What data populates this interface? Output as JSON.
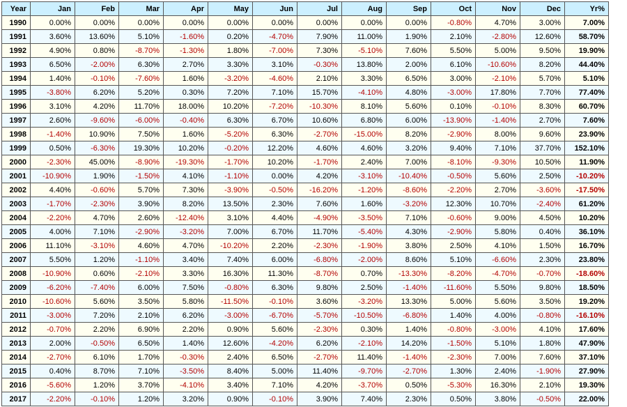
{
  "header": [
    "Year",
    "Jan",
    "Feb",
    "Mar",
    "Apr",
    "May",
    "Jun",
    "Jul",
    "Aug",
    "Sep",
    "Oct",
    "Nov",
    "Dec",
    "Yr%"
  ],
  "rows": [
    [
      "1990",
      "0.00%",
      "0.00%",
      "0.00%",
      "0.00%",
      "0.00%",
      "0.00%",
      "0.00%",
      "0.00%",
      "0.00%",
      "-0.80%",
      "4.70%",
      "3.00%",
      "7.00%"
    ],
    [
      "1991",
      "3.60%",
      "13.60%",
      "5.10%",
      "-1.60%",
      "0.20%",
      "-4.70%",
      "7.90%",
      "11.00%",
      "1.90%",
      "2.10%",
      "-2.80%",
      "12.60%",
      "58.70%"
    ],
    [
      "1992",
      "4.90%",
      "0.80%",
      "-8.70%",
      "-1.30%",
      "1.80%",
      "-7.00%",
      "7.30%",
      "-5.10%",
      "7.60%",
      "5.50%",
      "5.00%",
      "9.50%",
      "19.90%"
    ],
    [
      "1993",
      "6.50%",
      "-2.00%",
      "6.30%",
      "2.70%",
      "3.30%",
      "3.10%",
      "-0.30%",
      "13.80%",
      "2.00%",
      "6.10%",
      "-10.60%",
      "8.20%",
      "44.40%"
    ],
    [
      "1994",
      "1.40%",
      "-0.10%",
      "-7.60%",
      "1.60%",
      "-3.20%",
      "-4.60%",
      "2.10%",
      "3.30%",
      "6.50%",
      "3.00%",
      "-2.10%",
      "5.70%",
      "5.10%"
    ],
    [
      "1995",
      "-3.80%",
      "6.20%",
      "5.20%",
      "0.30%",
      "7.20%",
      "7.10%",
      "15.70%",
      "-4.10%",
      "4.80%",
      "-3.00%",
      "17.80%",
      "7.70%",
      "77.40%"
    ],
    [
      "1996",
      "3.10%",
      "4.20%",
      "11.70%",
      "18.00%",
      "10.20%",
      "-7.20%",
      "-10.30%",
      "8.10%",
      "5.60%",
      "0.10%",
      "-0.10%",
      "8.30%",
      "60.70%"
    ],
    [
      "1997",
      "2.60%",
      "-9.60%",
      "-6.00%",
      "-0.40%",
      "6.30%",
      "6.70%",
      "10.60%",
      "6.80%",
      "6.00%",
      "-13.90%",
      "-1.40%",
      "2.70%",
      "7.60%"
    ],
    [
      "1998",
      "-1.40%",
      "10.90%",
      "7.50%",
      "1.60%",
      "-5.20%",
      "6.30%",
      "-2.70%",
      "-15.00%",
      "8.20%",
      "-2.90%",
      "8.00%",
      "9.60%",
      "23.90%"
    ],
    [
      "1999",
      "0.50%",
      "-6.30%",
      "19.30%",
      "10.20%",
      "-0.20%",
      "12.20%",
      "4.60%",
      "4.60%",
      "3.20%",
      "9.40%",
      "7.10%",
      "37.70%",
      "152.10%"
    ],
    [
      "2000",
      "-2.30%",
      "45.00%",
      "-8.90%",
      "-19.30%",
      "-1.70%",
      "10.20%",
      "-1.70%",
      "2.40%",
      "7.00%",
      "-8.10%",
      "-9.30%",
      "10.50%",
      "11.90%"
    ],
    [
      "2001",
      "-10.90%",
      "1.90%",
      "-1.50%",
      "4.10%",
      "-1.10%",
      "0.00%",
      "4.20%",
      "-3.10%",
      "-10.40%",
      "-0.50%",
      "5.60%",
      "2.50%",
      "-10.20%"
    ],
    [
      "2002",
      "4.40%",
      "-0.60%",
      "5.70%",
      "7.30%",
      "-3.90%",
      "-0.50%",
      "-16.20%",
      "-1.20%",
      "-8.60%",
      "-2.20%",
      "2.70%",
      "-3.60%",
      "-17.50%"
    ],
    [
      "2003",
      "-1.70%",
      "-2.30%",
      "3.90%",
      "8.20%",
      "13.50%",
      "2.30%",
      "7.60%",
      "1.60%",
      "-3.20%",
      "12.30%",
      "10.70%",
      "-2.40%",
      "61.20%"
    ],
    [
      "2004",
      "-2.20%",
      "4.70%",
      "2.60%",
      "-12.40%",
      "3.10%",
      "4.40%",
      "-4.90%",
      "-3.50%",
      "7.10%",
      "-0.60%",
      "9.00%",
      "4.50%",
      "10.20%"
    ],
    [
      "2005",
      "4.00%",
      "7.10%",
      "-2.90%",
      "-3.20%",
      "7.00%",
      "6.70%",
      "11.70%",
      "-5.40%",
      "4.30%",
      "-2.90%",
      "5.80%",
      "0.40%",
      "36.10%"
    ],
    [
      "2006",
      "11.10%",
      "-3.10%",
      "4.60%",
      "4.70%",
      "-10.20%",
      "2.20%",
      "-2.30%",
      "-1.90%",
      "3.80%",
      "2.50%",
      "4.10%",
      "1.50%",
      "16.70%"
    ],
    [
      "2007",
      "5.50%",
      "1.20%",
      "-1.10%",
      "3.40%",
      "7.40%",
      "6.00%",
      "-6.80%",
      "-2.00%",
      "8.60%",
      "5.10%",
      "-6.60%",
      "2.30%",
      "23.80%"
    ],
    [
      "2008",
      "-10.90%",
      "0.60%",
      "-2.10%",
      "3.30%",
      "16.30%",
      "11.30%",
      "-8.70%",
      "0.70%",
      "-13.30%",
      "-8.20%",
      "-4.70%",
      "-0.70%",
      "-18.60%"
    ],
    [
      "2009",
      "-6.20%",
      "-7.40%",
      "6.00%",
      "7.50%",
      "-0.80%",
      "6.30%",
      "9.80%",
      "2.50%",
      "-1.40%",
      "-11.60%",
      "5.50%",
      "9.80%",
      "18.50%"
    ],
    [
      "2010",
      "-10.60%",
      "5.60%",
      "3.50%",
      "5.80%",
      "-11.50%",
      "-0.10%",
      "3.60%",
      "-3.20%",
      "13.30%",
      "5.00%",
      "5.60%",
      "3.50%",
      "19.20%"
    ],
    [
      "2011",
      "-3.00%",
      "7.20%",
      "2.10%",
      "6.20%",
      "-3.00%",
      "-6.70%",
      "-5.70%",
      "-10.50%",
      "-6.80%",
      "1.40%",
      "4.00%",
      "-0.80%",
      "-16.10%"
    ],
    [
      "2012",
      "-0.70%",
      "2.20%",
      "6.90%",
      "2.20%",
      "0.90%",
      "5.60%",
      "-2.30%",
      "0.30%",
      "1.40%",
      "-0.80%",
      "-3.00%",
      "4.10%",
      "17.60%"
    ],
    [
      "2013",
      "2.00%",
      "-0.50%",
      "6.50%",
      "1.40%",
      "12.60%",
      "-4.20%",
      "6.20%",
      "-2.10%",
      "14.20%",
      "-1.50%",
      "5.10%",
      "1.80%",
      "47.90%"
    ],
    [
      "2014",
      "-2.70%",
      "6.10%",
      "1.70%",
      "-0.30%",
      "2.40%",
      "6.50%",
      "-2.70%",
      "11.40%",
      "-1.40%",
      "-2.30%",
      "7.00%",
      "7.60%",
      "37.10%"
    ],
    [
      "2015",
      "0.40%",
      "8.70%",
      "7.10%",
      "-3.50%",
      "8.40%",
      "5.00%",
      "11.40%",
      "-9.70%",
      "-2.70%",
      "1.30%",
      "2.40%",
      "-1.90%",
      "27.90%"
    ],
    [
      "2016",
      "-5.60%",
      "1.20%",
      "3.70%",
      "-4.10%",
      "3.40%",
      "7.10%",
      "4.20%",
      "-3.70%",
      "0.50%",
      "-5.30%",
      "16.30%",
      "2.10%",
      "19.30%"
    ],
    [
      "2017",
      "-2.20%",
      "-0.10%",
      "1.20%",
      "3.20%",
      "0.90%",
      "-0.10%",
      "3.90%",
      "7.40%",
      "2.30%",
      "0.50%",
      "3.80%",
      "-0.50%",
      "22.00%"
    ]
  ],
  "colors": {
    "header_bg": "#ccf0ff",
    "row_odd_bg": "#fffff0",
    "row_even_bg": "#eefaff",
    "negative_text": "#b30000",
    "positive_text": "#000000",
    "border": "#555555"
  }
}
